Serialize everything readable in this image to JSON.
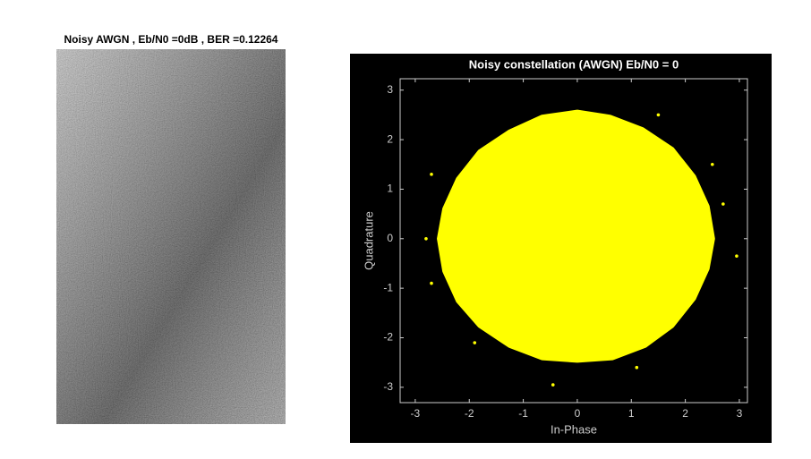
{
  "chart_data": [
    {
      "type": "image",
      "title": "Noisy AWGN , Eb/N0 =0dB , BER =0.12264"
    },
    {
      "type": "scatter",
      "title": "Noisy constellation (AWGN) Eb/N0 = 0",
      "x_label": "In-Phase",
      "y_label": "Quadrature",
      "xlim": [
        -3.28,
        3.15
      ],
      "ylim": [
        -3.31,
        3.23
      ],
      "xticks": [
        -3,
        -2,
        -1,
        0,
        1,
        2,
        3
      ],
      "yticks": [
        -3,
        -2,
        -1,
        0,
        1,
        2,
        3
      ],
      "background": "#000000",
      "series": [
        {
          "color": "#ffff00",
          "x": [
            2.5,
            2.4,
            2.15,
            1.75,
            1.2,
            0.6,
            0,
            -0.65,
            -1.25,
            -1.8,
            -2.2,
            -2.45,
            -2.55,
            -2.45,
            -2.2,
            -1.8,
            -1.25,
            -0.65,
            0,
            0.65,
            1.25,
            1.75,
            2.15,
            2.4
          ],
          "y": [
            0,
            0.65,
            1.25,
            1.8,
            2.2,
            2.45,
            2.55,
            2.45,
            2.15,
            1.75,
            1.2,
            0.6,
            0,
            -0.65,
            -1.25,
            -1.75,
            -2.15,
            -2.4,
            -2.45,
            -2.4,
            -2.15,
            -1.75,
            -1.2,
            -0.6
          ]
        },
        {
          "color": "#ffff00",
          "x": [
            -2.8,
            2.95,
            -0.45,
            2.5,
            -2.7,
            1.5,
            -2.7,
            2.7,
            -1.9,
            1.1
          ],
          "y": [
            0,
            -0.35,
            -2.95,
            1.5,
            -0.9,
            2.5,
            1.3,
            0.7,
            -2.1,
            -2.6
          ]
        }
      ]
    }
  ]
}
